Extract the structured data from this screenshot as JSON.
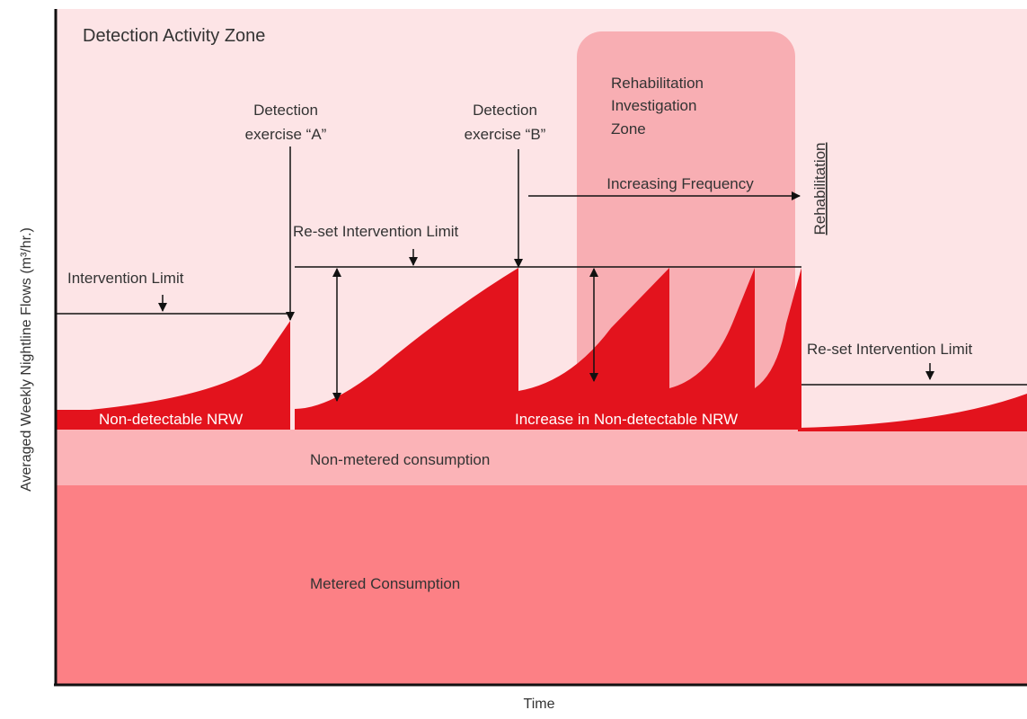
{
  "title": "Detection Activity Zone",
  "rehabilitation_zone": {
    "lines": [
      "Rehabilitation",
      "Investigation",
      "Zone"
    ]
  },
  "detection_a": {
    "lines": [
      "Detection",
      "exercise “A”"
    ]
  },
  "detection_b": {
    "lines": [
      "Detection",
      "exercise “B”"
    ]
  },
  "increasing_frequency": "Increasing Frequency",
  "rehabilitation": "Rehabilitation",
  "intervention_limit": "Intervention Limit",
  "reset_limit_1": "Re-set Intervention Limit",
  "reset_limit_2": "Re-set Intervention Limit",
  "non_detectable": "Non-detectable NRW",
  "increase_non_detectable": "Increase in Non-detectable NRW",
  "non_metered": "Non-metered consumption",
  "metered": "Metered Consumption",
  "y_axis_label": "Averaged Weekly Nightline Flows (m³/hr.)",
  "x_axis_label": "Time"
}
